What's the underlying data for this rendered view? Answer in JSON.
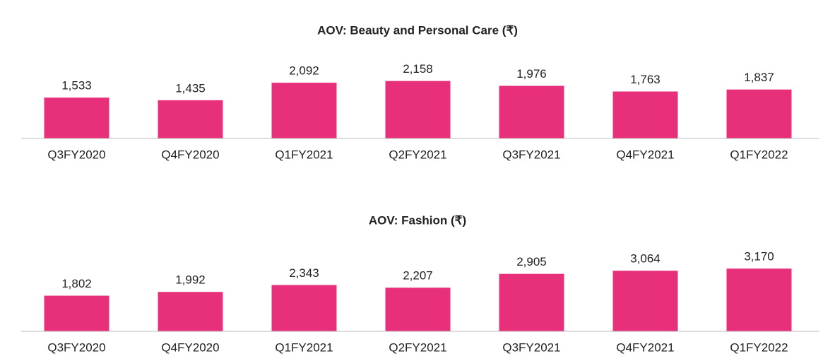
{
  "chart_data": [
    {
      "type": "bar",
      "title": "AOV: Beauty and Personal Care (₹)",
      "categories": [
        "Q3FY2020",
        "Q4FY2020",
        "Q1FY2021",
        "Q2FY2021",
        "Q3FY2021",
        "Q4FY2021",
        "Q1FY2022"
      ],
      "values": [
        1533,
        1435,
        2092,
        2158,
        1976,
        1763,
        1837
      ],
      "value_labels": [
        "1,533",
        "1,435",
        "2,092",
        "2,158",
        "1,976",
        "1,763",
        "1,837"
      ],
      "color": "#e8307a",
      "ylim": [
        0,
        3500
      ]
    },
    {
      "type": "bar",
      "title": "AOV: Fashion (₹)",
      "categories": [
        "Q3FY2020",
        "Q4FY2020",
        "Q1FY2021",
        "Q2FY2021",
        "Q3FY2021",
        "Q4FY2021",
        "Q1FY2022"
      ],
      "values": [
        1802,
        1992,
        2343,
        2207,
        2905,
        3064,
        3170
      ],
      "value_labels": [
        "1,802",
        "1,992",
        "2,343",
        "2,207",
        "2,905",
        "3,064",
        "3,170"
      ],
      "color": "#e8307a",
      "ylim": [
        0,
        5000
      ]
    }
  ]
}
